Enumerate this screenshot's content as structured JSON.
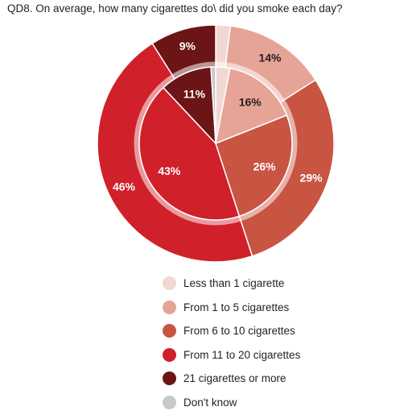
{
  "title": "QD8. On average, how many cigarettes do\\ did you smoke each day?",
  "chart_data": {
    "type": "pie",
    "categories": [
      "Less than 1 cigarette",
      "From 1 to 5 cigarettes",
      "From 6 to 10 cigarettes",
      "From 11 to 20 cigarettes",
      "21 cigarettes or more",
      "Don't know"
    ],
    "colors": [
      "#f1d8d2",
      "#e6a497",
      "#c85442",
      "#d0202a",
      "#6b1517",
      "#c9c9c9"
    ],
    "series": [
      {
        "ring": "outer",
        "values": [
          2,
          14,
          29,
          46,
          9,
          0
        ],
        "labels": [
          "",
          "14%",
          "29%",
          "46%",
          "9%",
          ""
        ]
      },
      {
        "ring": "inner",
        "values": [
          3,
          16,
          26,
          43,
          11,
          1
        ],
        "labels": [
          "",
          "16%",
          "26%",
          "43%",
          "11%",
          ""
        ]
      }
    ],
    "legend_position": "bottom"
  }
}
